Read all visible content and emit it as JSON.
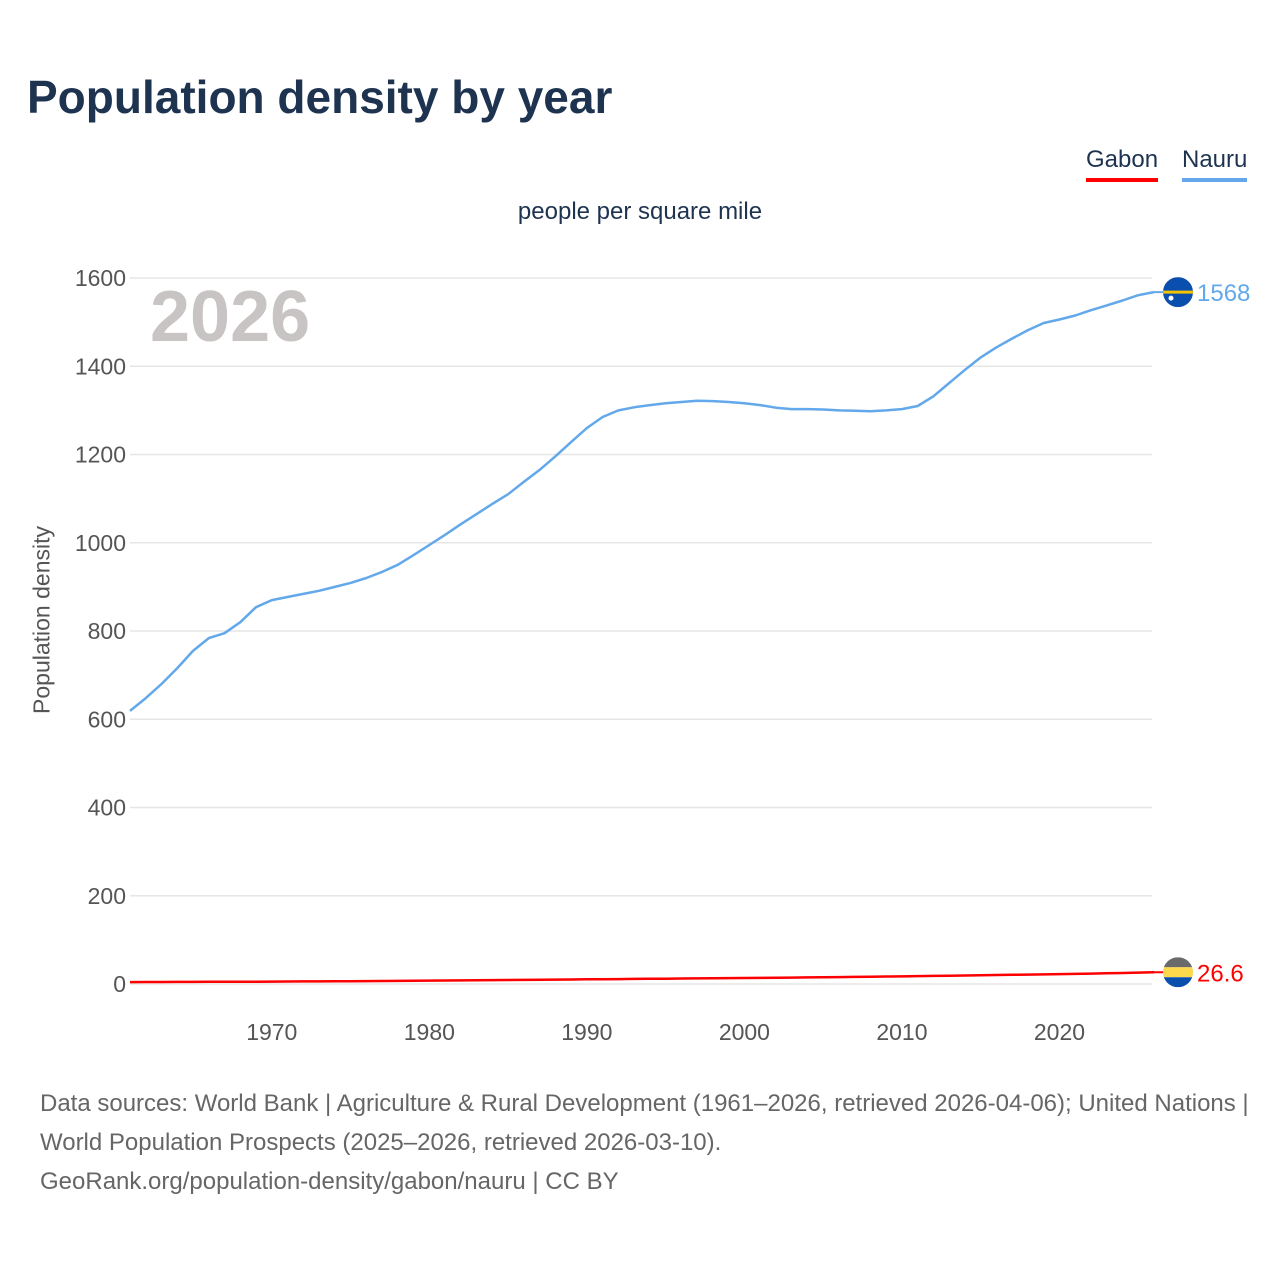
{
  "title": "Population density by year",
  "legend": [
    {
      "label": "Gabon",
      "color": "#ff0000"
    },
    {
      "label": "Nauru",
      "color": "#62a8ea"
    }
  ],
  "footer": {
    "line1": "Data sources: World Bank | Agriculture & Rural Development (1961–2026, retrieved 2026-04-06); United Nations | World Population Prospects (2025–2026, retrieved 2026-03-10).",
    "line2": "GeoRank.org/population-density/gabon/nauru | CC BY"
  },
  "chart_data": {
    "type": "line",
    "title": "Population density by year",
    "subtitle": "people per square mile",
    "ylabel": "Population density",
    "xlabel": "",
    "year_watermark": "2026",
    "ylim": [
      0,
      1600
    ],
    "xlim": [
      1961,
      2026
    ],
    "yticks": [
      0,
      200,
      400,
      600,
      800,
      1000,
      1200,
      1400,
      1600
    ],
    "xticks": [
      1970,
      1980,
      1990,
      2000,
      2010,
      2020
    ],
    "grid": true,
    "legend_position": "top-right",
    "x_start": 1961,
    "series": [
      {
        "name": "Nauru",
        "color": "#62a8ea",
        "end_label": "1568",
        "values": [
          619,
          648,
          680,
          716,
          755,
          784,
          795,
          820,
          854,
          870,
          877,
          884,
          891,
          900,
          909,
          920,
          934,
          950,
          972,
          995,
          1018,
          1042,
          1065,
          1088,
          1110,
          1138,
          1165,
          1196,
          1228,
          1260,
          1285,
          1300,
          1307,
          1312,
          1316,
          1319,
          1322,
          1321,
          1319,
          1316,
          1312,
          1306,
          1303,
          1303,
          1302,
          1300,
          1299,
          1298,
          1300,
          1303,
          1310,
          1332,
          1362,
          1392,
          1420,
          1443,
          1463,
          1482,
          1498,
          1506,
          1515,
          1527,
          1538,
          1549,
          1561,
          1568
        ]
      },
      {
        "name": "Gabon",
        "color": "#ff0000",
        "end_label": "26.6",
        "values": [
          4.4,
          4.5,
          4.6,
          4.7,
          4.8,
          4.9,
          5.0,
          5.1,
          5.3,
          5.4,
          5.6,
          5.8,
          6.0,
          6.2,
          6.4,
          6.6,
          6.9,
          7.1,
          7.4,
          7.6,
          7.9,
          8.2,
          8.5,
          8.8,
          9.1,
          9.4,
          9.7,
          10.0,
          10.3,
          10.6,
          10.9,
          11.2,
          11.5,
          11.8,
          12.1,
          12.4,
          12.7,
          13.0,
          13.3,
          13.6,
          13.9,
          14.2,
          14.5,
          14.9,
          15.3,
          15.6,
          16.0,
          16.4,
          16.9,
          17.3,
          17.8,
          18.3,
          18.8,
          19.3,
          19.8,
          20.3,
          20.8,
          21.3,
          21.8,
          22.4,
          23.0,
          23.6,
          24.3,
          25.0,
          25.8,
          26.6
        ]
      }
    ]
  }
}
